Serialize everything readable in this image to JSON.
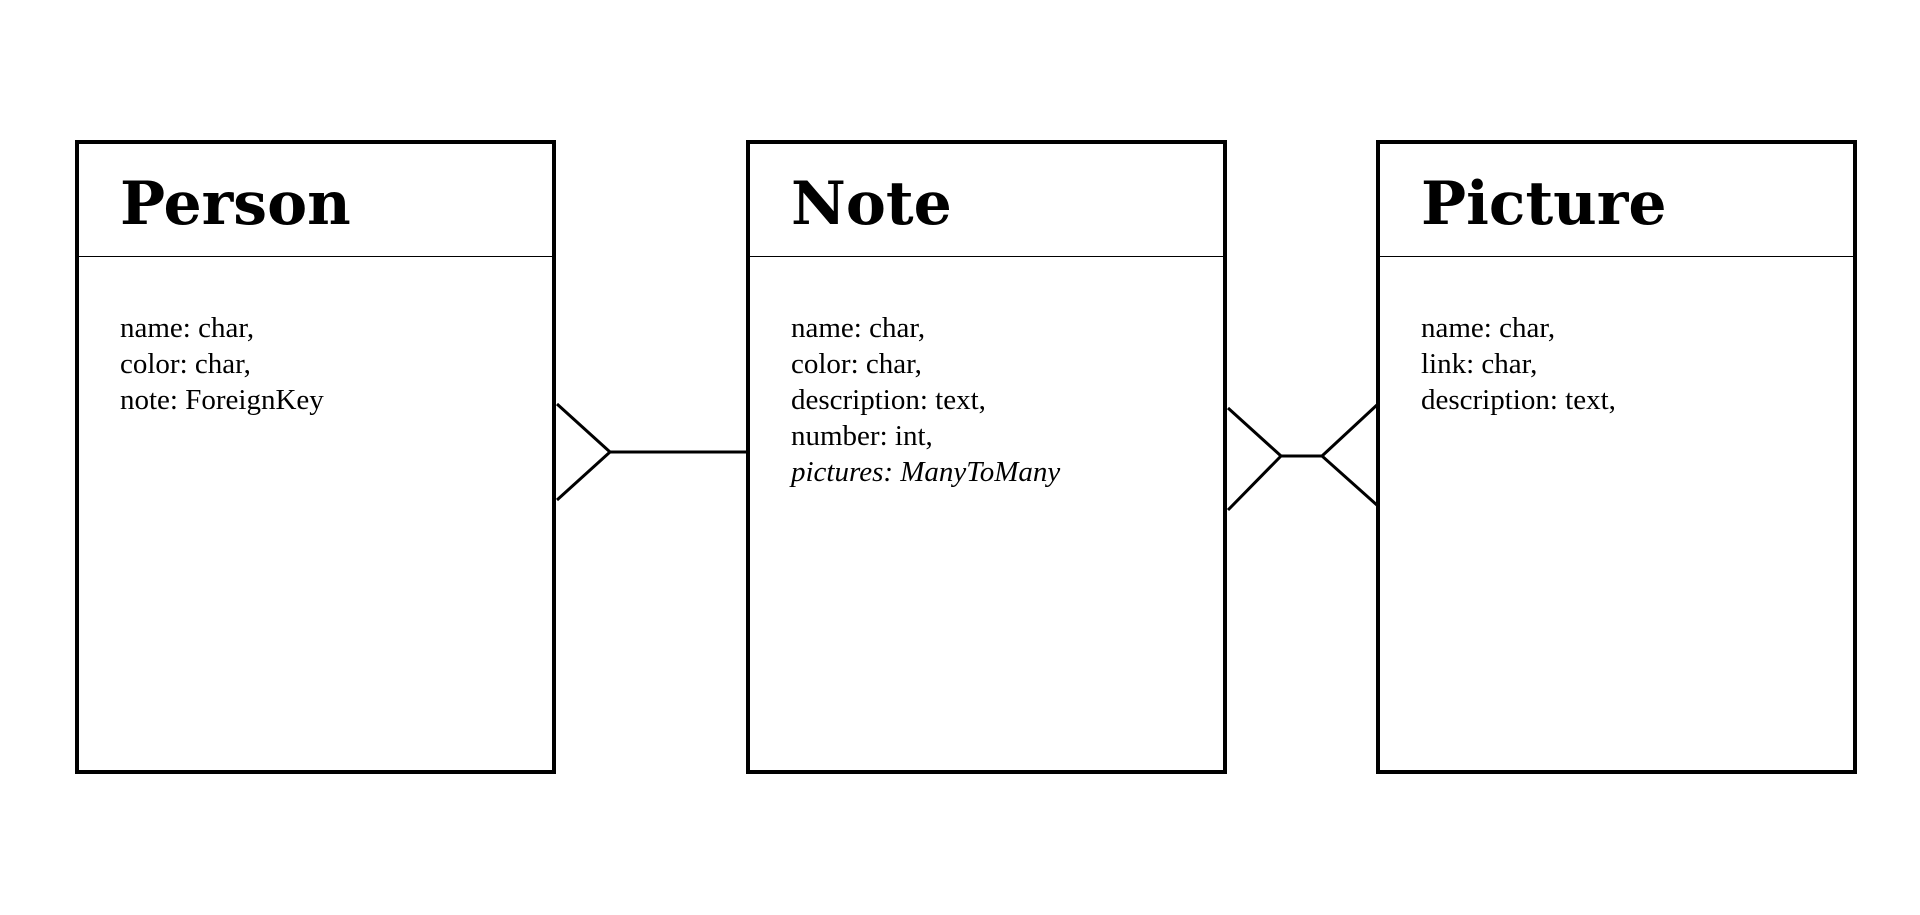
{
  "entities": {
    "person": {
      "title": "Person",
      "fields": [
        "name: char,",
        "color: char,",
        "note: ForeignKey"
      ]
    },
    "note": {
      "title": "Note",
      "fields": [
        "name: char,",
        "color: char,",
        "description: text,",
        "number: int,",
        "pictures: ManyToMany"
      ]
    },
    "picture": {
      "title": "Picture",
      "fields": [
        "name: char,",
        "link: char,",
        "description: text,"
      ]
    }
  },
  "relationships": [
    {
      "from": "Person",
      "to": "Note",
      "from_end": "many",
      "to_end": "one"
    },
    {
      "from": "Note",
      "to": "Picture",
      "from_end": "many",
      "to_end": "many"
    }
  ],
  "colors": {
    "stroke": "#000000",
    "background": "#ffffff"
  }
}
